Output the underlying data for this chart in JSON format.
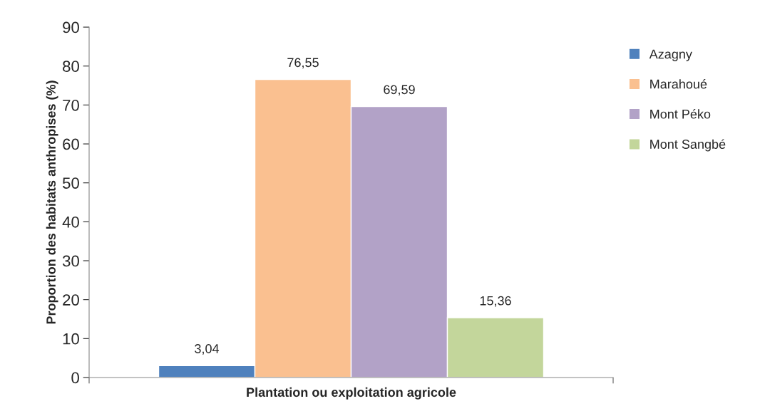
{
  "chart_data": {
    "type": "bar",
    "ylabel": "Proportion des habitats anthropises (%)",
    "categories": [
      "Plantation ou exploitation agricole"
    ],
    "series": [
      {
        "name": "Azagny",
        "color": "#4f81bd",
        "values": [
          3.04
        ],
        "value_labels": [
          "3,04"
        ]
      },
      {
        "name": "Marahoué",
        "color": "#fac090",
        "values": [
          76.55
        ],
        "value_labels": [
          "76,55"
        ]
      },
      {
        "name": "Mont Péko",
        "color": "#b2a2c7",
        "values": [
          69.59
        ],
        "value_labels": [
          "69,59"
        ]
      },
      {
        "name": "Mont Sangbé",
        "color": "#c3d69b",
        "values": [
          15.36
        ],
        "value_labels": [
          "15,36"
        ]
      }
    ],
    "ylim": [
      0,
      90
    ],
    "yticks": [
      0,
      10,
      20,
      30,
      40,
      50,
      60,
      70,
      80,
      90
    ],
    "grid": false,
    "legend": "right"
  }
}
